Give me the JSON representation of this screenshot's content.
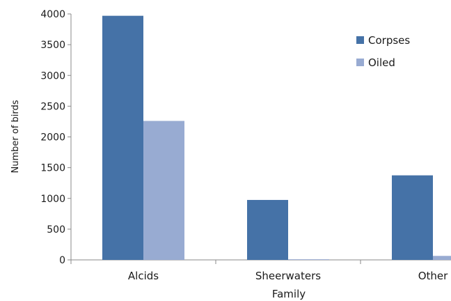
{
  "chart_data": {
    "type": "bar",
    "title": "",
    "xlabel": "Family",
    "ylabel": "Number of birds",
    "categories": [
      "Alcids",
      "Sheerwaters",
      "Other"
    ],
    "series": [
      {
        "name": "Corpses",
        "values": [
          3970,
          975,
          1375
        ],
        "color": "#4572A7"
      },
      {
        "name": "Oiled",
        "values": [
          2260,
          10,
          65
        ],
        "color": "#98ABD2"
      }
    ],
    "ylim": [
      0,
      4000
    ],
    "yticks": [
      "0",
      "500",
      "1000",
      "1500",
      "2000",
      "2500",
      "3000",
      "3500",
      "4000"
    ],
    "grid": false,
    "legend_position": "top-right"
  }
}
